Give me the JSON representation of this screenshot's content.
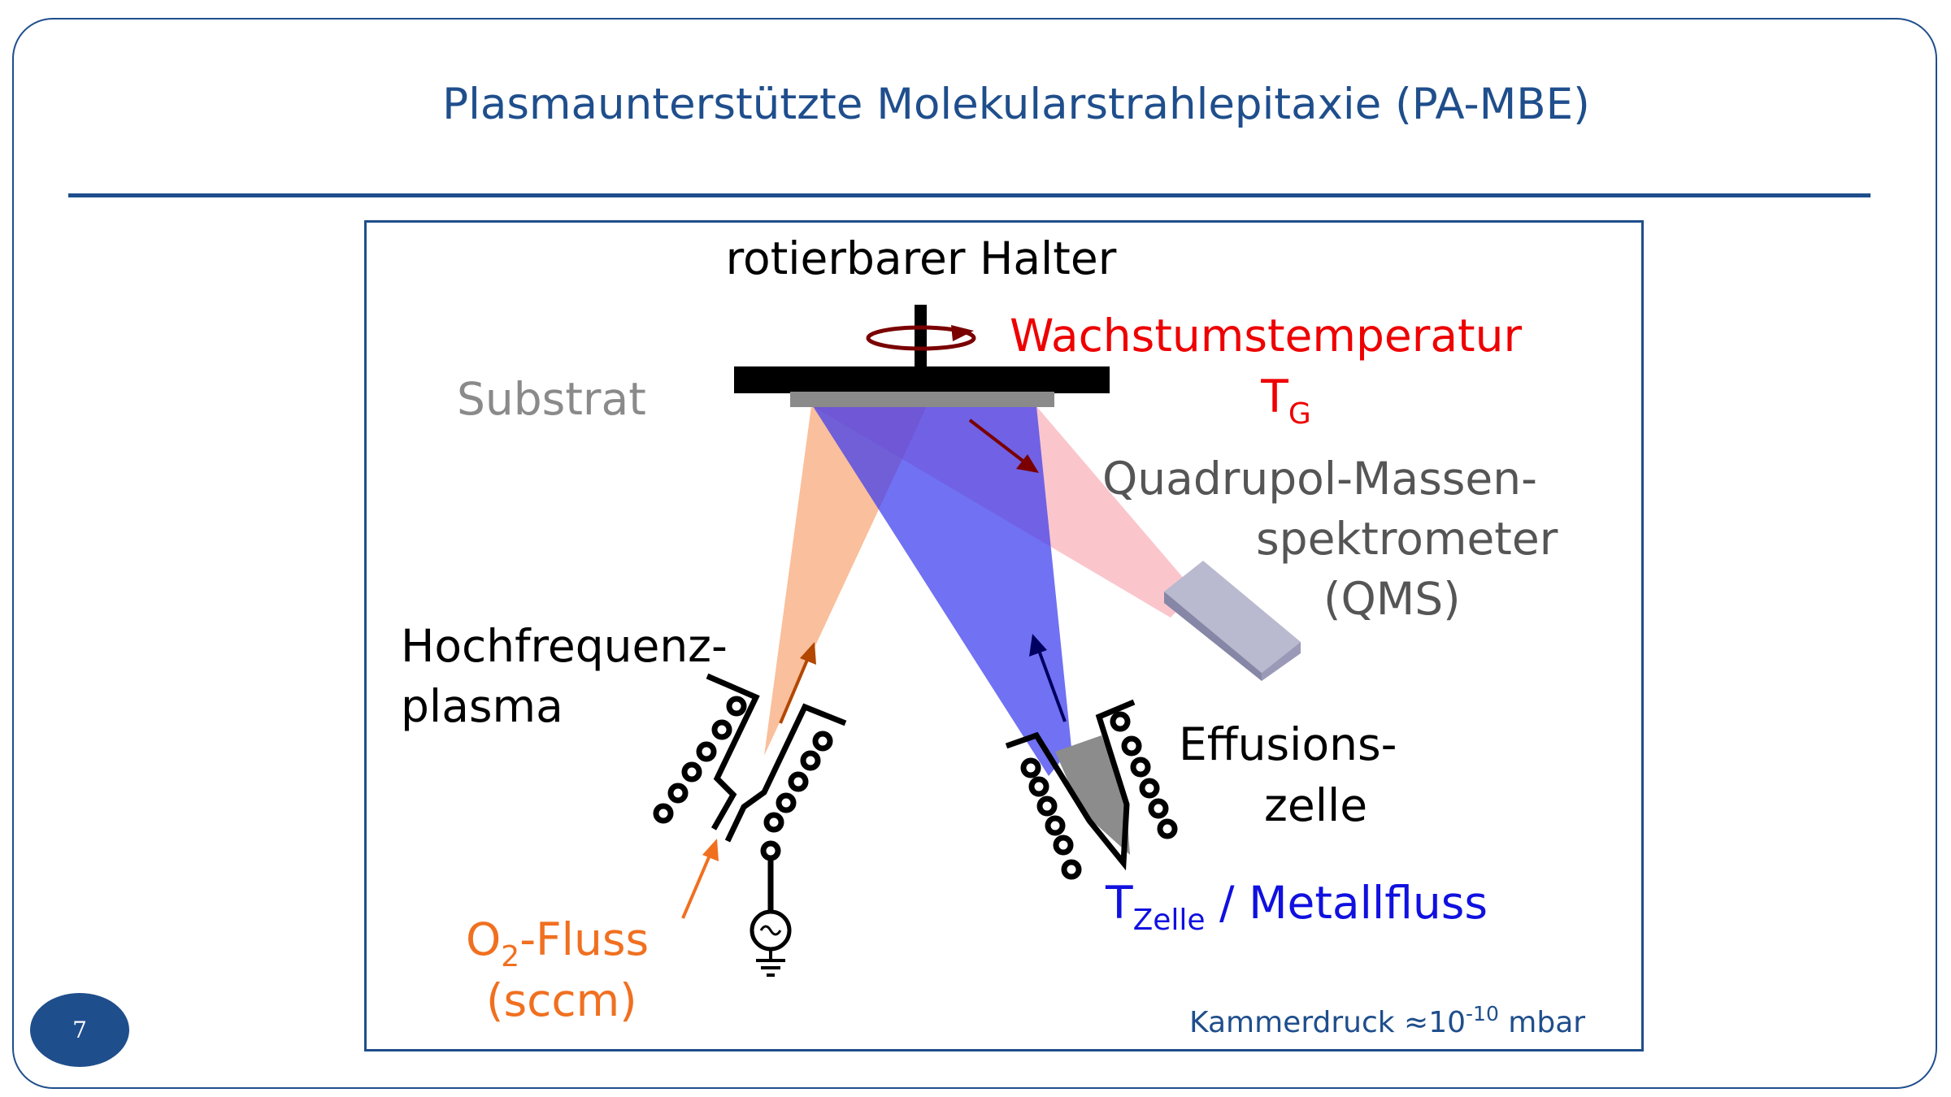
{
  "slide": {
    "title": "Plasmaunterstützte Molekularstrahlepitaxie (PA-MBE)",
    "page_number": "7"
  },
  "diagram": {
    "holder_label": "rotierbarer Halter",
    "substrate_label": "Substrat",
    "growth_temp_label": "Wachstumstemperatur",
    "growth_temp_symbol": "T",
    "growth_temp_subscript": "G",
    "qms_line1": "Quadrupol-Massen-",
    "qms_line2": "spektrometer",
    "qms_line3": "(QMS)",
    "plasma_line1": "Hochfrequenz-",
    "plasma_line2": "plasma",
    "effusion_line1": "Effusions-",
    "effusion_line2": "zelle",
    "o2_prefix": "O",
    "o2_subscript": "2",
    "o2_suffix": "-Fluss",
    "o2_unit": "(sccm)",
    "cell_temp_symbol": "T",
    "cell_temp_subscript": "Zelle",
    "metal_flux_label": " / Metallfluss",
    "pressure_prefix": "Kammerdruck ≈10",
    "pressure_exponent": "-10",
    "pressure_unit": " mbar"
  },
  "colors": {
    "accent": "#1f4e8c",
    "oxygen": "#f07020",
    "metal": "#1010e0",
    "temperature": "#ee0000",
    "qms_text": "#555555",
    "substrate_text": "#8a8a8a"
  }
}
